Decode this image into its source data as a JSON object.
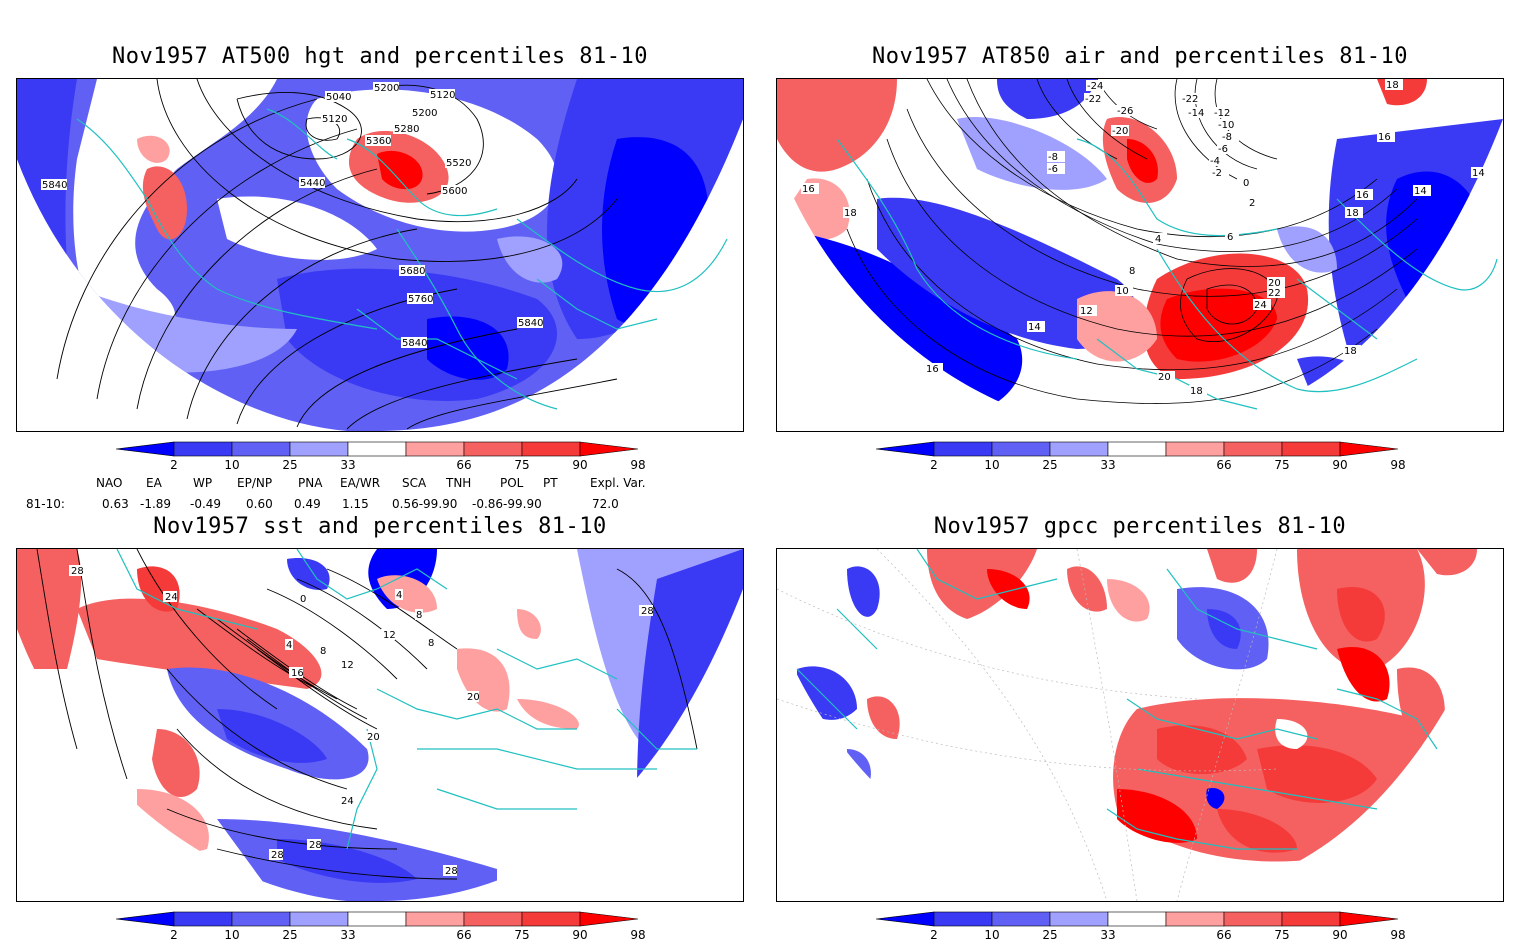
{
  "panels": [
    {
      "id": "hgt500",
      "title": "Nov1957 AT500 hgt and percentiles 81-10",
      "contour_labels": [
        "5040",
        "5200",
        "5120",
        "5120",
        "5200",
        "5280",
        "5360",
        "5520",
        "5440",
        "5600",
        "5840",
        "5680",
        "5760",
        "5840",
        "5840"
      ]
    },
    {
      "id": "air850",
      "title": "Nov1957 AT850 air and percentiles 81-10",
      "contour_labels": [
        "-24",
        "-22",
        "-26",
        "-22",
        "-14",
        "-12",
        "-20",
        "-10",
        "-8",
        "-8",
        "-6",
        "-6",
        "-4",
        "-2",
        "0",
        "2",
        "4",
        "6",
        "8",
        "10",
        "12",
        "14",
        "16",
        "16",
        "18",
        "16",
        "18",
        "14",
        "14",
        "20",
        "22",
        "24",
        "20",
        "18",
        "16",
        "18",
        "18"
      ]
    },
    {
      "id": "sst",
      "title": "Nov1957 sst and percentiles 81-10",
      "contour_labels": [
        "28",
        "24",
        "0",
        "4",
        "8",
        "12",
        "16",
        "4",
        "8",
        "12",
        "20",
        "20",
        "24",
        "28",
        "28",
        "28",
        "28",
        "8"
      ]
    },
    {
      "id": "gpcc",
      "title": "Nov1957 gpcc percentiles 81-10",
      "contour_labels": []
    }
  ],
  "colorbar": {
    "ticks": [
      "2",
      "10",
      "25",
      "33",
      "66",
      "75",
      "90",
      "98"
    ],
    "colors": [
      "#0000ff",
      "#3a3af5",
      "#6060f5",
      "#a0a0ff",
      "#ffffff",
      "#ffa0a0",
      "#f56060",
      "#f53a3a",
      "#ff0000"
    ]
  },
  "indices": {
    "headers": [
      "NAO",
      "EA",
      "WP",
      "EP/NP",
      "PNA",
      "EA/WR",
      "SCA",
      "TNH",
      "POL",
      "PT",
      "Expl. Var."
    ],
    "row_label": "81-10:",
    "values": [
      "0.63",
      "-1.89",
      "-0.49",
      "0.60",
      "0.49",
      "1.15",
      "0.56-99.90",
      "-0.86-99.90",
      "72.0"
    ]
  }
}
